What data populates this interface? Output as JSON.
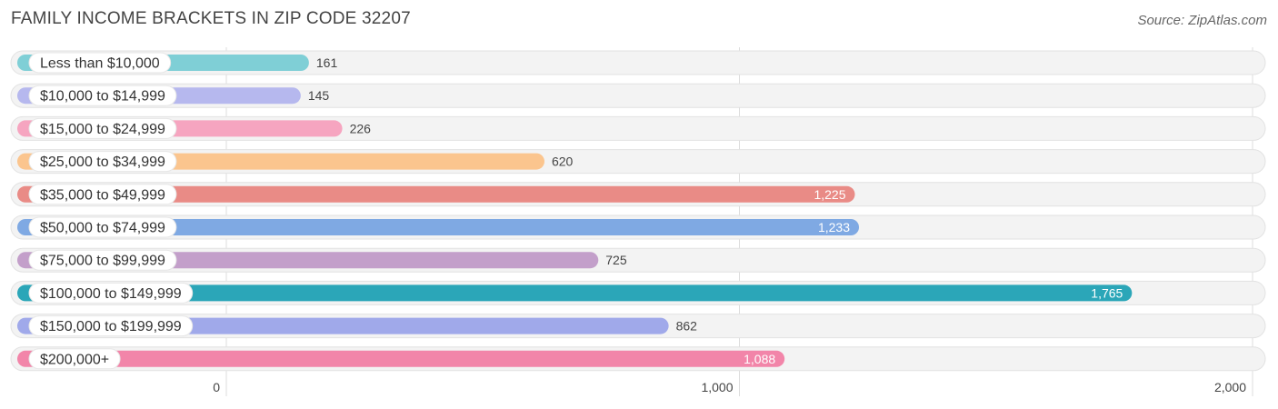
{
  "header": {
    "title": "FAMILY INCOME BRACKETS IN ZIP CODE 32207",
    "source": "Source: ZipAtlas.com"
  },
  "chart_data": {
    "type": "bar",
    "orientation": "horizontal",
    "title": "FAMILY INCOME BRACKETS IN ZIP CODE 32207",
    "categories": [
      "Less than $10,000",
      "$10,000 to $14,999",
      "$15,000 to $24,999",
      "$25,000 to $34,999",
      "$35,000 to $49,999",
      "$50,000 to $74,999",
      "$75,000 to $99,999",
      "$100,000 to $149,999",
      "$150,000 to $199,999",
      "$200,000+"
    ],
    "values": [
      161,
      145,
      226,
      620,
      1225,
      1233,
      725,
      1765,
      862,
      1088
    ],
    "value_labels": [
      "161",
      "145",
      "226",
      "620",
      "1,225",
      "1,233",
      "725",
      "1,765",
      "862",
      "1,088"
    ],
    "colors": [
      "#7fcfd6",
      "#b6b8ee",
      "#f6a5c0",
      "#fbc58e",
      "#e98b86",
      "#7fa9e3",
      "#c39fca",
      "#2ba6b8",
      "#a0a9ea",
      "#f285a9"
    ],
    "xlim": [
      0,
      2000
    ],
    "xticks": [
      0,
      1000,
      2000
    ],
    "xtick_labels": [
      "0",
      "1,000",
      "2,000"
    ],
    "grid": true
  }
}
